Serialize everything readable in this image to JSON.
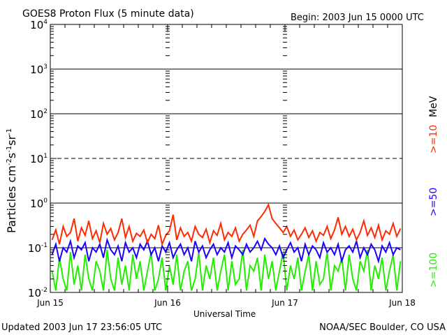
{
  "chart_data": {
    "type": "line",
    "title": "GOES8 Proton Flux (5 minute data)",
    "subtitle": "Begin: 2003 Jun 15 0000 UTC",
    "xlabel": "Universal Time",
    "ylabel_parts": {
      "main": "Particles cm",
      "e1": "-2",
      "s": "s",
      "e2": "-1",
      "sr": "sr",
      "e3": "-1"
    },
    "y_scale": "log",
    "ylim": [
      0.01,
      10000
    ],
    "y_tick_base": "10",
    "y_tick_exponents": [
      "4",
      "3",
      "2",
      "1",
      "0",
      "-1",
      "-2"
    ],
    "x_ticks": [
      "Jun 15",
      "Jun 16",
      "Jun 17",
      "Jun 18"
    ],
    "xlim_days": [
      0,
      3
    ],
    "grid": "horizontal lines at 1e3, 1e2, 1e1 (dashed), 1e0, 1e-1",
    "legend_placement": "right, vertical",
    "legend": [
      {
        "label": ">=10",
        "color": "#ff2a00"
      },
      {
        "label": "MeV",
        "color": "#000000"
      },
      {
        "label": ">=50",
        "color": "#1a00ff"
      },
      {
        "label": ">=100",
        "color": "#22ee00"
      }
    ],
    "series": [
      {
        "name": ">=10 MeV",
        "color": "#ff2a00",
        "values": [
          0.15,
          0.25,
          0.12,
          0.3,
          0.18,
          0.22,
          0.45,
          0.14,
          0.28,
          0.19,
          0.4,
          0.16,
          0.24,
          0.13,
          0.35,
          0.2,
          0.27,
          0.15,
          0.22,
          0.45,
          0.17,
          0.3,
          0.14,
          0.21,
          0.18,
          0.25,
          0.13,
          0.2,
          0.16,
          0.32,
          0.12,
          0.19,
          0.24,
          0.55,
          0.15,
          0.28,
          0.18,
          0.22,
          0.14,
          0.3,
          0.2,
          0.17,
          0.26,
          0.13,
          0.24,
          0.19,
          0.35,
          0.15,
          0.22,
          0.18,
          0.28,
          0.14,
          0.2,
          0.25,
          0.32,
          0.18,
          0.4,
          0.5,
          0.65,
          0.92,
          0.45,
          0.35,
          0.28,
          0.22,
          0.3,
          0.18,
          0.25,
          0.15,
          0.2,
          0.28,
          0.17,
          0.24,
          0.14,
          0.22,
          0.19,
          0.3,
          0.16,
          0.25,
          0.48,
          0.2,
          0.3,
          0.18,
          0.26,
          0.15,
          0.22,
          0.4,
          0.19,
          0.28,
          0.17,
          0.32,
          0.15,
          0.24,
          0.2,
          0.35,
          0.18,
          0.27
        ]
      },
      {
        "name": ">=50 MeV",
        "color": "#1a00ff",
        "values": [
          0.07,
          0.12,
          0.05,
          0.1,
          0.08,
          0.14,
          0.06,
          0.11,
          0.09,
          0.13,
          0.05,
          0.1,
          0.08,
          0.12,
          0.06,
          0.15,
          0.09,
          0.07,
          0.11,
          0.05,
          0.13,
          0.08,
          0.1,
          0.06,
          0.12,
          0.09,
          0.14,
          0.07,
          0.1,
          0.05,
          0.11,
          0.08,
          0.13,
          0.06,
          0.09,
          0.12,
          0.07,
          0.1,
          0.05,
          0.14,
          0.08,
          0.11,
          0.06,
          0.09,
          0.12,
          0.07,
          0.1,
          0.08,
          0.13,
          0.06,
          0.11,
          0.09,
          0.07,
          0.12,
          0.08,
          0.1,
          0.14,
          0.09,
          0.16,
          0.12,
          0.1,
          0.07,
          0.11,
          0.06,
          0.09,
          0.13,
          0.08,
          0.1,
          0.05,
          0.12,
          0.07,
          0.11,
          0.09,
          0.06,
          0.13,
          0.08,
          0.1,
          0.07,
          0.12,
          0.05,
          0.09,
          0.11,
          0.08,
          0.14,
          0.06,
          0.1,
          0.07,
          0.12,
          0.09,
          0.05,
          0.11,
          0.08,
          0.13,
          0.07,
          0.1,
          0.09
        ]
      },
      {
        "name": ">=100 MeV",
        "color": "#22ee00",
        "values": [
          0.03,
          0.011,
          0.06,
          0.02,
          0.011,
          0.08,
          0.015,
          0.04,
          0.011,
          0.07,
          0.02,
          0.011,
          0.05,
          0.03,
          0.011,
          0.09,
          0.02,
          0.011,
          0.06,
          0.015,
          0.04,
          0.011,
          0.07,
          0.02,
          0.05,
          0.011,
          0.03,
          0.08,
          0.011,
          0.02,
          0.06,
          0.011,
          0.04,
          0.015,
          0.07,
          0.011,
          0.03,
          0.05,
          0.011,
          0.02,
          0.08,
          0.011,
          0.04,
          0.02,
          0.06,
          0.011,
          0.03,
          0.07,
          0.011,
          0.05,
          0.015,
          0.02,
          0.09,
          0.011,
          0.04,
          0.03,
          0.06,
          0.011,
          0.07,
          0.02,
          0.05,
          0.011,
          0.03,
          0.08,
          0.011,
          0.04,
          0.02,
          0.06,
          0.011,
          0.03,
          0.07,
          0.011,
          0.05,
          0.015,
          0.02,
          0.08,
          0.011,
          0.04,
          0.03,
          0.06,
          0.011,
          0.07,
          0.02,
          0.011,
          0.05,
          0.03,
          0.09,
          0.011,
          0.04,
          0.02,
          0.06,
          0.011,
          0.03,
          0.07,
          0.011,
          0.05
        ]
      }
    ]
  },
  "footer": {
    "updated": "Updated 2003 Jun 17 23:56:05 UTC",
    "source": "NOAA/SEC Boulder, CO USA"
  }
}
